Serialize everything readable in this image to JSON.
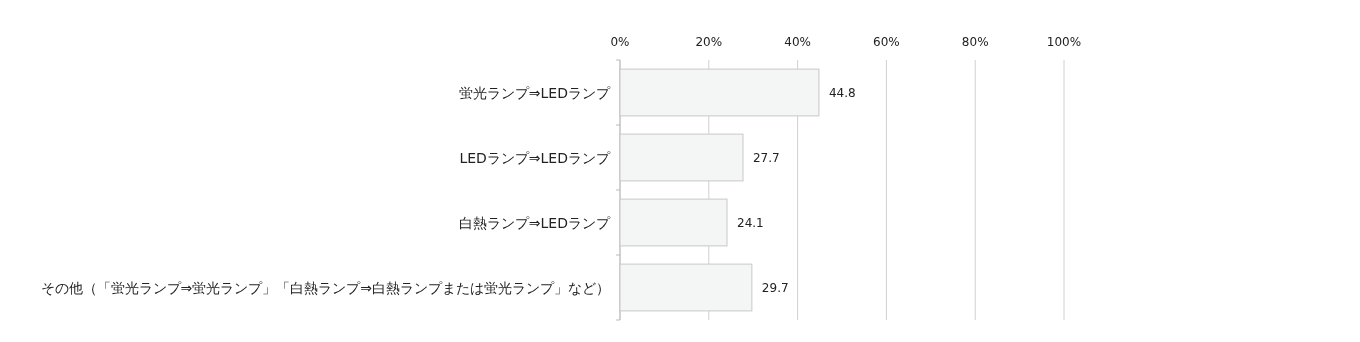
{
  "chart_data": {
    "type": "bar",
    "orientation": "horizontal",
    "categories": [
      "蛍光ランプ⇒LEDランプ",
      "LEDランプ⇒LEDランプ",
      "白熱ランプ⇒LEDランプ",
      "その他（「蛍光ランプ⇒蛍光ランプ」「白熱ランプ⇒白熱ランプまたは蛍光ランプ」など）"
    ],
    "values": [
      44.8,
      27.7,
      24.1,
      29.7
    ],
    "color": "#f4f5f5",
    "xlim": [
      0,
      100
    ],
    "xticks": [
      {
        "value": 0,
        "label": "0%"
      },
      {
        "value": 20,
        "label": "20%"
      },
      {
        "value": 40,
        "label": "40%"
      },
      {
        "value": 60,
        "label": "60%"
      },
      {
        "value": 80,
        "label": "80%"
      },
      {
        "value": 100,
        "label": "100%"
      }
    ],
    "grid": "x",
    "data_labels": true
  }
}
